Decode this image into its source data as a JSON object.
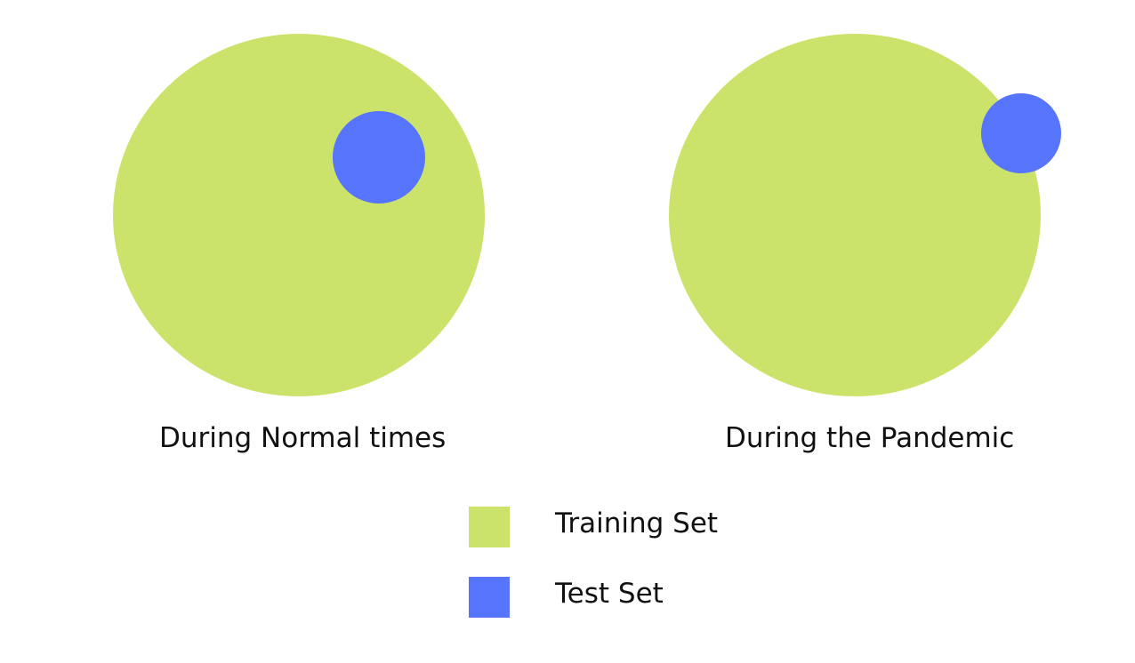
{
  "colors": {
    "training": "#cce36b",
    "test": "#5674fc",
    "background": "#ffffff",
    "text": "#111111"
  },
  "panels": [
    {
      "caption": "During Normal times",
      "test_position": "inside training set"
    },
    {
      "caption": "During the Pandemic",
      "test_position": "partially outside training set"
    }
  ],
  "legend": {
    "items": [
      {
        "label": "Training Set",
        "color": "#cce36b"
      },
      {
        "label": "Test Set",
        "color": "#5674fc"
      }
    ]
  }
}
